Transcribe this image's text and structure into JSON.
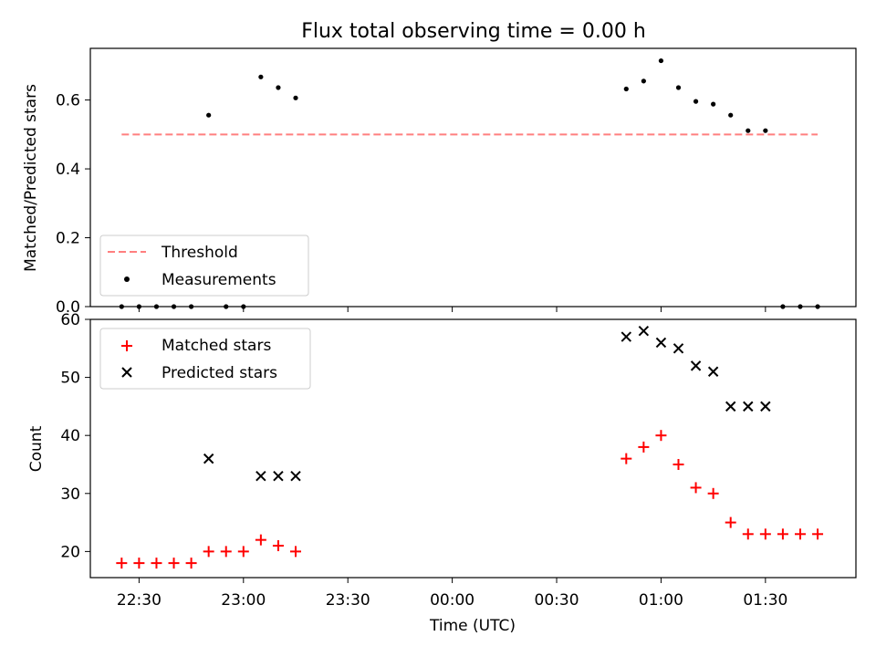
{
  "title": "Flux total observing time = 0.00 h",
  "chart_data": [
    {
      "type": "scatter",
      "panel": "top",
      "ylabel": "Matched/Predicted stars",
      "ylim": [
        0.0,
        0.75
      ],
      "yticks": [
        0.0,
        0.2,
        0.4,
        0.6
      ],
      "ytick_labels": [
        "0.0",
        "0.2",
        "0.4",
        "0.6"
      ],
      "legend_position": "lower-left",
      "threshold": {
        "name": "Threshold",
        "value": 0.5,
        "x_range": [
          "22:25",
          "01:45"
        ],
        "color": "#ff7f7f",
        "style": "dashed"
      },
      "series": [
        {
          "name": "Measurements",
          "marker": "dot",
          "color": "#000000",
          "points": [
            {
              "x": "22:25",
              "y": 0.0
            },
            {
              "x": "22:30",
              "y": 0.0
            },
            {
              "x": "22:35",
              "y": 0.0
            },
            {
              "x": "22:40",
              "y": 0.0
            },
            {
              "x": "22:45",
              "y": 0.0
            },
            {
              "x": "22:50",
              "y": 0.556
            },
            {
              "x": "22:55",
              "y": 0.0
            },
            {
              "x": "23:00",
              "y": 0.0
            },
            {
              "x": "23:05",
              "y": 0.667
            },
            {
              "x": "23:10",
              "y": 0.636
            },
            {
              "x": "23:15",
              "y": 0.606
            },
            {
              "x": "00:50",
              "y": 0.632
            },
            {
              "x": "00:55",
              "y": 0.655
            },
            {
              "x": "01:00",
              "y": 0.714
            },
            {
              "x": "01:05",
              "y": 0.636
            },
            {
              "x": "01:10",
              "y": 0.596
            },
            {
              "x": "01:15",
              "y": 0.588
            },
            {
              "x": "01:20",
              "y": 0.556
            },
            {
              "x": "01:25",
              "y": 0.511
            },
            {
              "x": "01:30",
              "y": 0.511
            },
            {
              "x": "01:35",
              "y": 0.0
            },
            {
              "x": "01:40",
              "y": 0.0
            },
            {
              "x": "01:45",
              "y": 0.0
            }
          ]
        }
      ]
    },
    {
      "type": "scatter",
      "panel": "bottom",
      "xlabel": "Time (UTC)",
      "ylabel": "Count",
      "ylim": [
        15.5,
        60
      ],
      "yticks": [
        20,
        30,
        40,
        50,
        60
      ],
      "ytick_labels": [
        "20",
        "30",
        "40",
        "50",
        "60"
      ],
      "xlim": [
        "22:16",
        "01:56"
      ],
      "xticks": [
        "22:30",
        "23:00",
        "23:30",
        "00:00",
        "00:30",
        "01:00",
        "01:30"
      ],
      "legend_position": "upper-left",
      "series": [
        {
          "name": "Matched stars",
          "marker": "plus",
          "color": "#ff0000",
          "points": [
            {
              "x": "22:25",
              "y": 18
            },
            {
              "x": "22:30",
              "y": 18
            },
            {
              "x": "22:35",
              "y": 18
            },
            {
              "x": "22:40",
              "y": 18
            },
            {
              "x": "22:45",
              "y": 18
            },
            {
              "x": "22:50",
              "y": 20
            },
            {
              "x": "22:55",
              "y": 20
            },
            {
              "x": "23:00",
              "y": 20
            },
            {
              "x": "23:05",
              "y": 22
            },
            {
              "x": "23:10",
              "y": 21
            },
            {
              "x": "23:15",
              "y": 20
            },
            {
              "x": "00:50",
              "y": 36
            },
            {
              "x": "00:55",
              "y": 38
            },
            {
              "x": "01:00",
              "y": 40
            },
            {
              "x": "01:05",
              "y": 35
            },
            {
              "x": "01:10",
              "y": 31
            },
            {
              "x": "01:15",
              "y": 30
            },
            {
              "x": "01:20",
              "y": 25
            },
            {
              "x": "01:25",
              "y": 23
            },
            {
              "x": "01:30",
              "y": 23
            },
            {
              "x": "01:35",
              "y": 23
            },
            {
              "x": "01:40",
              "y": 23
            },
            {
              "x": "01:45",
              "y": 23
            }
          ]
        },
        {
          "name": "Predicted stars",
          "marker": "x",
          "color": "#000000",
          "points": [
            {
              "x": "22:50",
              "y": 36
            },
            {
              "x": "23:05",
              "y": 33
            },
            {
              "x": "23:10",
              "y": 33
            },
            {
              "x": "23:15",
              "y": 33
            },
            {
              "x": "00:50",
              "y": 57
            },
            {
              "x": "00:55",
              "y": 58
            },
            {
              "x": "01:00",
              "y": 56
            },
            {
              "x": "01:05",
              "y": 55
            },
            {
              "x": "01:10",
              "y": 52
            },
            {
              "x": "01:15",
              "y": 51
            },
            {
              "x": "01:20",
              "y": 45
            },
            {
              "x": "01:25",
              "y": 45
            },
            {
              "x": "01:30",
              "y": 45
            }
          ]
        }
      ]
    }
  ]
}
